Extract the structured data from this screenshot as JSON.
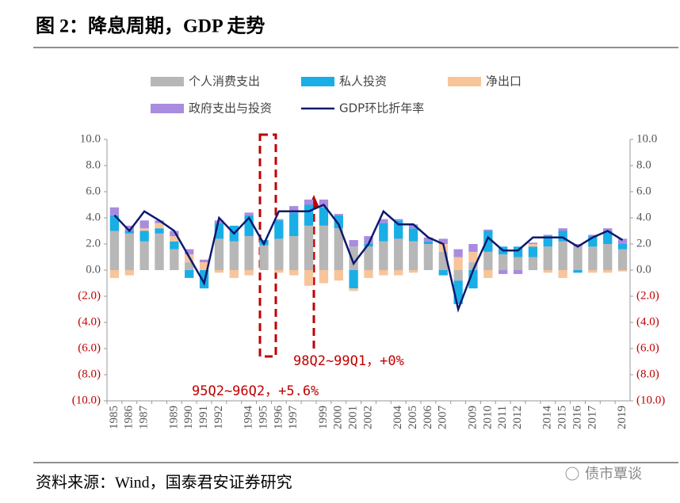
{
  "chart_data": {
    "type": "combo",
    "title": "图 2：降息周期，GDP 走势",
    "source": "资料来源：Wind，国泰君安证券研究",
    "watermark": "债市覃谈",
    "categories": [
      "1985",
      "1986",
      "1987",
      null,
      "1989",
      "1990",
      "1991",
      "1992",
      null,
      "1994",
      "1995",
      "1996",
      "1997",
      null,
      "1999",
      "2000",
      "2001",
      "2002",
      null,
      "2004",
      "2005",
      "2006",
      "2007",
      null,
      "2009",
      "2010",
      "2011",
      "2012",
      null,
      "2014",
      "2015",
      "2016",
      "2017",
      null,
      "2019"
    ],
    "series": [
      {
        "name": "个人消费支出",
        "type": "bar",
        "color": "#b7b7b7",
        "values": [
          3.0,
          2.8,
          2.2,
          2.8,
          1.6,
          0.6,
          0.0,
          2.4,
          2.2,
          2.6,
          1.9,
          2.4,
          2.6,
          3.4,
          3.4,
          3.2,
          1.8,
          1.8,
          2.2,
          2.4,
          2.2,
          2.0,
          1.4,
          -0.8,
          0.6,
          1.4,
          1.2,
          1.0,
          1.0,
          1.8,
          2.2,
          1.8,
          1.8,
          2.0,
          1.6
        ]
      },
      {
        "name": "私人投资",
        "type": "bar",
        "color": "#1aaee6",
        "values": [
          1.2,
          0.2,
          0.8,
          0.4,
          0.6,
          -0.6,
          -1.4,
          1.2,
          1.2,
          1.6,
          0.4,
          1.4,
          1.8,
          1.6,
          1.4,
          1.0,
          -1.4,
          0.2,
          1.4,
          1.4,
          1.0,
          0.2,
          -0.4,
          -1.8,
          -1.4,
          1.6,
          0.6,
          0.8,
          0.8,
          0.8,
          0.8,
          -0.2,
          0.8,
          1.0,
          0.4
        ]
      },
      {
        "name": "净出口",
        "type": "bar",
        "color": "#f8c49a",
        "values": [
          -0.6,
          -0.4,
          0.2,
          0.4,
          0.4,
          0.6,
          0.6,
          -0.2,
          -0.6,
          -0.4,
          0.0,
          -0.2,
          -0.4,
          -1.2,
          -1.0,
          -0.8,
          -0.2,
          -0.6,
          -0.4,
          -0.4,
          -0.2,
          0.0,
          0.6,
          1.0,
          0.8,
          -0.6,
          0.0,
          0.0,
          0.2,
          -0.2,
          -0.6,
          0.0,
          -0.2,
          -0.2,
          -0.1
        ]
      },
      {
        "name": "政府支出与投资",
        "type": "bar",
        "color": "#a98be0",
        "values": [
          0.6,
          0.4,
          0.6,
          0.2,
          0.4,
          0.4,
          0.2,
          0.2,
          0.0,
          0.2,
          0.0,
          0.1,
          0.5,
          0.4,
          0.6,
          0.1,
          0.5,
          0.6,
          0.3,
          0.1,
          0.3,
          0.3,
          0.4,
          0.6,
          0.6,
          0.1,
          -0.3,
          -0.3,
          0.1,
          0.1,
          0.2,
          0.2,
          0.1,
          0.2,
          0.4
        ]
      },
      {
        "name": "GDP环比折年率",
        "type": "line",
        "color": "#0d1a6e",
        "values": [
          4.2,
          3.0,
          4.5,
          3.8,
          3.0,
          1.0,
          -1.0,
          4.0,
          2.8,
          4.0,
          2.0,
          4.5,
          4.5,
          4.5,
          5.0,
          3.5,
          0.5,
          2.0,
          4.5,
          3.5,
          3.5,
          2.5,
          2.0,
          -3.0,
          0.0,
          2.5,
          1.5,
          1.5,
          2.5,
          2.5,
          2.5,
          1.8,
          2.5,
          3.0,
          2.3
        ]
      }
    ],
    "ylim": [
      -10,
      10
    ],
    "yticks": [
      {
        "value": 10,
        "label": "10.0"
      },
      {
        "value": 8,
        "label": "8.0"
      },
      {
        "value": 6,
        "label": "6.0"
      },
      {
        "value": 4,
        "label": "4.0"
      },
      {
        "value": 2,
        "label": "2.0"
      },
      {
        "value": 0,
        "label": "0.0"
      },
      {
        "value": -2,
        "label": "(2.0)"
      },
      {
        "value": -4,
        "label": "(4.0)"
      },
      {
        "value": -6,
        "label": "(6.0)"
      },
      {
        "value": -8,
        "label": "(8.0)"
      },
      {
        "value": -10,
        "label": "(10.0)"
      }
    ],
    "y2lim": [
      -10,
      10
    ],
    "y2ticks": [
      {
        "value": 10,
        "label": "10.0"
      },
      {
        "value": 8,
        "label": "8.0"
      },
      {
        "value": 6,
        "label": "6.0"
      },
      {
        "value": 4,
        "label": "4.0"
      },
      {
        "value": 2,
        "label": "2.0"
      },
      {
        "value": 0,
        "label": "0.0"
      },
      {
        "value": -2,
        "label": "(2.0)"
      },
      {
        "value": -4,
        "label": "(4.0)"
      },
      {
        "value": -6,
        "label": "(6.0)"
      },
      {
        "value": -8,
        "label": "(8.0)"
      },
      {
        "value": -10,
        "label": "(10.0)"
      }
    ],
    "negative_tick_color": "#c00000",
    "annotations": [
      "98Q2~99Q1，+0%",
      "95Q2~96Q2，+5.6%"
    ]
  }
}
